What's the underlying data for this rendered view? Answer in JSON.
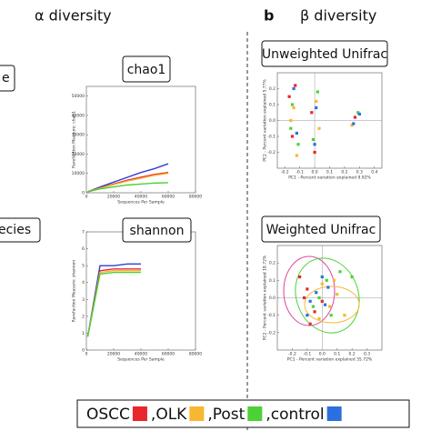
{
  "panel_a": {
    "title": "α diversity",
    "cut_labels": [
      "e",
      "ecies"
    ]
  },
  "panel_b": {
    "letter": "b",
    "title": "β diversity"
  },
  "legend": {
    "items": [
      {
        "name": "OSCC",
        "color": "#e8262b"
      },
      {
        "name": ",OLK",
        "color": "#f7b733"
      },
      {
        "name": ",Post",
        "color": "#4cd137"
      },
      {
        "name": ",control",
        "color": "#2e6fe0"
      }
    ]
  },
  "chart_data": [
    {
      "type": "line",
      "title": "chao1",
      "xlabel": "Sequences Per Sample",
      "ylabel": "Rarefaction Measure: chao1",
      "x": [
        1000,
        10000,
        20000,
        30000,
        40000,
        50000,
        60000
      ],
      "xlim": [
        0,
        80000
      ],
      "xticks": [
        0,
        20000,
        40000,
        60000,
        80000
      ],
      "ylim": [
        0,
        55000
      ],
      "yticks": [
        0,
        10000,
        20000,
        30000,
        40000,
        50000
      ],
      "series": [
        {
          "color": "#2e3fd0",
          "values": [
            500,
            3000,
            5500,
            8000,
            10500,
            12500,
            15000
          ]
        },
        {
          "color": "#e8262b",
          "values": [
            500,
            2500,
            4500,
            6500,
            8000,
            9500,
            10500
          ]
        },
        {
          "color": "#f7b733",
          "values": [
            500,
            2300,
            4200,
            6000,
            7500,
            9000,
            10000
          ]
        },
        {
          "color": "#4cd137",
          "values": [
            500,
            2000,
            3000,
            4000,
            4500,
            5000,
            5200
          ]
        }
      ]
    },
    {
      "type": "line",
      "title": "shannon",
      "xlabel": "Sequences Per Sample",
      "ylabel": "Rarefaction Measure: shannon",
      "x": [
        1000,
        10000,
        20000,
        30000,
        40000
      ],
      "xlim": [
        0,
        80000
      ],
      "xticks": [
        0,
        20000,
        40000,
        60000,
        80000
      ],
      "ylim": [
        0,
        7
      ],
      "yticks": [
        0,
        1,
        2,
        3,
        4,
        5,
        6,
        7
      ],
      "series": [
        {
          "color": "#2e3fd0",
          "values": [
            0.8,
            5.0,
            5.0,
            5.1,
            5.1
          ]
        },
        {
          "color": "#e8262b",
          "values": [
            0.8,
            4.7,
            4.8,
            4.8,
            4.8
          ]
        },
        {
          "color": "#f7b733",
          "values": [
            0.8,
            4.6,
            4.7,
            4.7,
            4.7
          ]
        },
        {
          "color": "#4cd137",
          "values": [
            0.8,
            4.5,
            4.6,
            4.6,
            4.6
          ]
        }
      ]
    },
    {
      "type": "scatter",
      "title": "Unweighted Unifrac",
      "xlabel": "PC1 - Percent variation explained 9.92%",
      "ylabel": "PC2 - Percent variation explained 5.77%",
      "xlim": [
        -0.25,
        0.45
      ],
      "xticks": [
        -0.2,
        -0.1,
        {
          "value": 0,
          "label": "0.0"
        },
        0.1,
        0.2,
        0.3,
        0.4
      ],
      "ylim": [
        -0.3,
        0.3
      ],
      "yticks": [
        -0.2,
        -0.1,
        {
          "value": 0,
          "label": "0.0"
        },
        0.1,
        0.2
      ],
      "series": [
        {
          "color": "#e8262b",
          "x": [
            -0.17,
            -0.15,
            -0.02,
            0.0,
            0.27,
            -0.13
          ],
          "values": [
            0.15,
            -0.1,
            0.05,
            -0.2,
            0.02,
            0.22
          ]
        },
        {
          "color": "#f7b733",
          "x": [
            -0.16,
            -0.12,
            0.01,
            0.03,
            0.25,
            -0.14
          ],
          "values": [
            0.0,
            -0.22,
            0.12,
            -0.05,
            -0.03,
            0.08
          ]
        },
        {
          "color": "#4cd137",
          "x": [
            -0.15,
            -0.11,
            -0.01,
            0.02,
            0.29,
            -0.16
          ],
          "values": [
            0.1,
            -0.15,
            -0.12,
            0.18,
            0.05,
            -0.05
          ]
        },
        {
          "color": "#2e6fe0",
          "x": [
            -0.14,
            0.01,
            0.26,
            0.3,
            -0.12,
            0.0
          ],
          "values": [
            0.2,
            0.08,
            -0.02,
            0.04,
            -0.08,
            -0.15
          ]
        }
      ]
    },
    {
      "type": "scatter",
      "title": "Weighted Unifrac",
      "xlabel": "PC1 - Percent variation explained 35.72%",
      "ylabel": "PC2 - Percent variation explained 18.72%",
      "xlim": [
        -0.3,
        0.4
      ],
      "xticks": [
        -0.2,
        -0.1,
        {
          "value": 0,
          "label": "0.0"
        },
        0.1,
        0.2,
        0.3
      ],
      "ylim": [
        -0.3,
        0.3
      ],
      "yticks": [
        -0.2,
        -0.1,
        {
          "value": 0,
          "label": "0.0"
        },
        0.1,
        0.2
      ],
      "series": [
        {
          "color": "#e8262b",
          "x": [
            -0.1,
            -0.05,
            -0.15,
            0.0,
            -0.08,
            -0.12
          ],
          "values": [
            0.05,
            -0.08,
            0.12,
            -0.02,
            -0.15,
            0.0
          ]
        },
        {
          "color": "#f7b733",
          "x": [
            0.05,
            0.1,
            0.0,
            0.15,
            -0.02,
            0.08
          ],
          "values": [
            -0.05,
            0.02,
            0.08,
            -0.1,
            -0.12,
            0.1
          ]
        },
        {
          "color": "#4cd137",
          "x": [
            -0.02,
            0.03,
            0.12,
            -0.06,
            0.2,
            0.06
          ],
          "values": [
            0.0,
            0.1,
            0.15,
            -0.05,
            0.12,
            -0.1
          ]
        },
        {
          "color": "#2e6fe0",
          "x": [
            -0.04,
            0.02,
            -0.08,
            0.04,
            -0.1,
            0.0
          ],
          "values": [
            0.03,
            -0.04,
            -0.02,
            0.06,
            -0.1,
            0.12
          ]
        }
      ]
    }
  ]
}
